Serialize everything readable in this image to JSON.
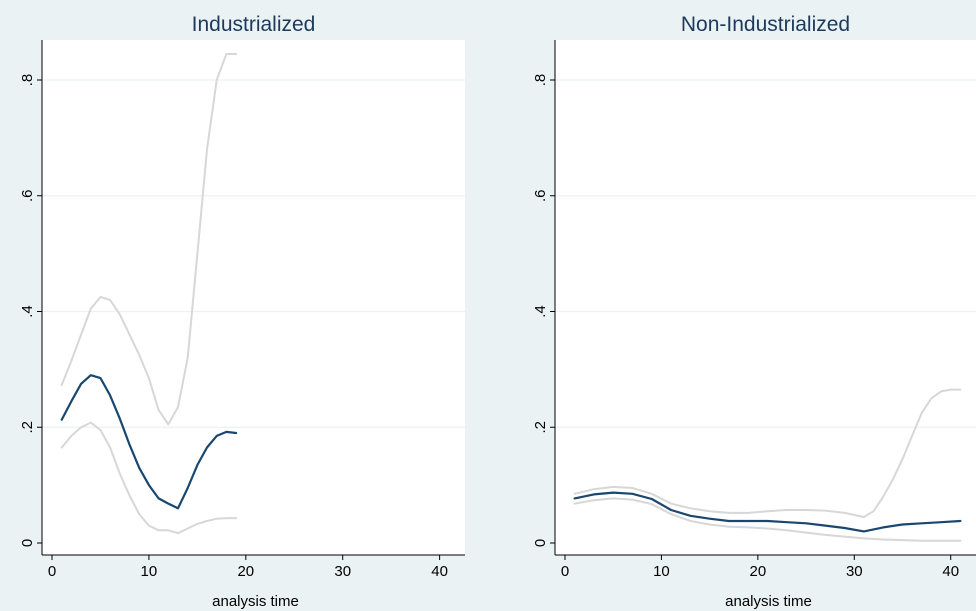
{
  "chart_data": [
    {
      "type": "line",
      "title": "Industrialized",
      "xlabel": "analysis time",
      "ylabel": "",
      "xlim": [
        0,
        42
      ],
      "ylim": [
        0,
        0.87
      ],
      "x_ticks": [
        0,
        10,
        20,
        30,
        40
      ],
      "x_tick_labels": [
        "0",
        "10",
        "20",
        "30",
        "40"
      ],
      "y_ticks": [
        0,
        0.2,
        0.4,
        0.6,
        0.8
      ],
      "y_tick_labels": [
        "0",
        ".2",
        ".4",
        ".6",
        ".8"
      ],
      "grid": true,
      "colors": {
        "estimate": "#1a476f",
        "ci": "#d7d7d7",
        "plot_bg": "#ffffff",
        "grid": "#eaf2f3"
      },
      "series": [
        {
          "role": "upper",
          "points": [
            [
              1,
              0.273
            ],
            [
              2,
              0.315
            ],
            [
              3,
              0.36
            ],
            [
              4,
              0.405
            ],
            [
              5,
              0.425
            ],
            [
              6,
              0.42
            ],
            [
              7,
              0.395
            ],
            [
              8,
              0.36
            ],
            [
              9,
              0.325
            ],
            [
              10,
              0.285
            ],
            [
              11,
              0.23
            ],
            [
              12,
              0.205
            ],
            [
              13,
              0.235
            ],
            [
              14,
              0.32
            ],
            [
              15,
              0.5
            ],
            [
              16,
              0.68
            ],
            [
              17,
              0.8
            ],
            [
              18,
              0.845
            ],
            [
              19,
              0.845
            ]
          ]
        },
        {
          "role": "estimate",
          "points": [
            [
              1,
              0.213
            ],
            [
              2,
              0.245
            ],
            [
              3,
              0.275
            ],
            [
              4,
              0.29
            ],
            [
              5,
              0.285
            ],
            [
              6,
              0.255
            ],
            [
              7,
              0.215
            ],
            [
              8,
              0.17
            ],
            [
              9,
              0.13
            ],
            [
              10,
              0.1
            ],
            [
              11,
              0.077
            ],
            [
              12,
              0.068
            ],
            [
              13,
              0.06
            ],
            [
              14,
              0.095
            ],
            [
              15,
              0.135
            ],
            [
              16,
              0.165
            ],
            [
              17,
              0.185
            ],
            [
              18,
              0.192
            ],
            [
              19,
              0.19
            ]
          ]
        },
        {
          "role": "lower",
          "points": [
            [
              1,
              0.165
            ],
            [
              2,
              0.185
            ],
            [
              3,
              0.2
            ],
            [
              4,
              0.208
            ],
            [
              5,
              0.195
            ],
            [
              6,
              0.165
            ],
            [
              7,
              0.12
            ],
            [
              8,
              0.082
            ],
            [
              9,
              0.05
            ],
            [
              10,
              0.03
            ],
            [
              11,
              0.022
            ],
            [
              12,
              0.022
            ],
            [
              13,
              0.017
            ],
            [
              14,
              0.025
            ],
            [
              15,
              0.033
            ],
            [
              16,
              0.038
            ],
            [
              17,
              0.042
            ],
            [
              18,
              0.043
            ],
            [
              19,
              0.043
            ]
          ]
        }
      ]
    },
    {
      "type": "line",
      "title": "Non-Industrialized",
      "xlabel": "analysis time",
      "ylabel": "",
      "xlim": [
        0,
        42
      ],
      "ylim": [
        0,
        0.87
      ],
      "x_ticks": [
        0,
        10,
        20,
        30,
        40
      ],
      "x_tick_labels": [
        "0",
        "10",
        "20",
        "30",
        "40"
      ],
      "y_ticks": [
        0,
        0.2,
        0.4,
        0.6,
        0.8
      ],
      "y_tick_labels": [
        "0",
        ".2",
        ".4",
        ".6",
        ".8"
      ],
      "grid": true,
      "colors": {
        "estimate": "#1a476f",
        "ci": "#d7d7d7",
        "plot_bg": "#ffffff",
        "grid": "#eaf2f3"
      },
      "series": [
        {
          "role": "upper",
          "points": [
            [
              1,
              0.085
            ],
            [
              3,
              0.093
            ],
            [
              5,
              0.097
            ],
            [
              7,
              0.095
            ],
            [
              9,
              0.085
            ],
            [
              11,
              0.068
            ],
            [
              13,
              0.06
            ],
            [
              15,
              0.055
            ],
            [
              17,
              0.052
            ],
            [
              19,
              0.052
            ],
            [
              21,
              0.055
            ],
            [
              23,
              0.057
            ],
            [
              25,
              0.057
            ],
            [
              27,
              0.056
            ],
            [
              29,
              0.052
            ],
            [
              31,
              0.045
            ],
            [
              32,
              0.055
            ],
            [
              33,
              0.08
            ],
            [
              34,
              0.11
            ],
            [
              35,
              0.145
            ],
            [
              36,
              0.185
            ],
            [
              37,
              0.225
            ],
            [
              38,
              0.25
            ],
            [
              39,
              0.262
            ],
            [
              40,
              0.265
            ],
            [
              41,
              0.265
            ]
          ]
        },
        {
          "role": "estimate",
          "points": [
            [
              1,
              0.077
            ],
            [
              3,
              0.084
            ],
            [
              5,
              0.087
            ],
            [
              7,
              0.085
            ],
            [
              9,
              0.076
            ],
            [
              11,
              0.057
            ],
            [
              13,
              0.047
            ],
            [
              15,
              0.042
            ],
            [
              17,
              0.038
            ],
            [
              19,
              0.038
            ],
            [
              21,
              0.038
            ],
            [
              23,
              0.036
            ],
            [
              25,
              0.034
            ],
            [
              27,
              0.03
            ],
            [
              29,
              0.026
            ],
            [
              31,
              0.02
            ],
            [
              33,
              0.027
            ],
            [
              35,
              0.032
            ],
            [
              37,
              0.034
            ],
            [
              39,
              0.036
            ],
            [
              41,
              0.038
            ]
          ]
        },
        {
          "role": "lower",
          "points": [
            [
              1,
              0.068
            ],
            [
              3,
              0.074
            ],
            [
              5,
              0.077
            ],
            [
              7,
              0.075
            ],
            [
              9,
              0.067
            ],
            [
              11,
              0.05
            ],
            [
              13,
              0.038
            ],
            [
              15,
              0.032
            ],
            [
              17,
              0.028
            ],
            [
              19,
              0.027
            ],
            [
              21,
              0.025
            ],
            [
              23,
              0.022
            ],
            [
              25,
              0.018
            ],
            [
              27,
              0.014
            ],
            [
              29,
              0.011
            ],
            [
              31,
              0.008
            ],
            [
              33,
              0.006
            ],
            [
              35,
              0.005
            ],
            [
              37,
              0.004
            ],
            [
              39,
              0.004
            ],
            [
              41,
              0.004
            ]
          ]
        }
      ]
    }
  ]
}
